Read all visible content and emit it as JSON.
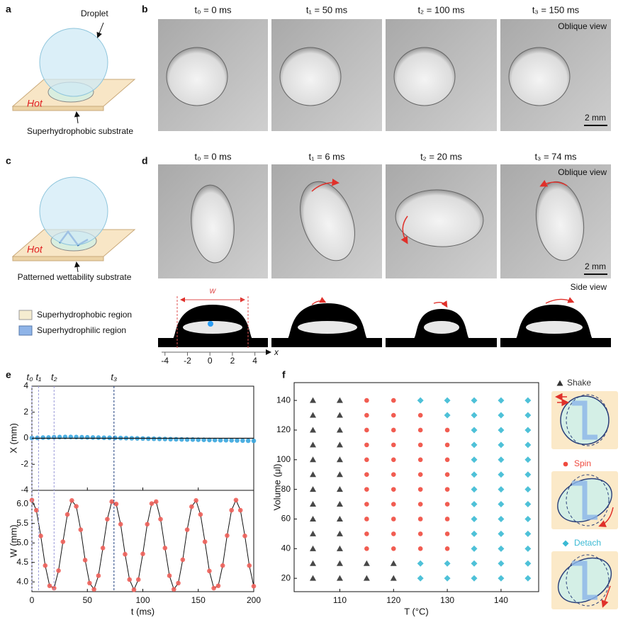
{
  "panel_labels": [
    "a",
    "b",
    "c",
    "d",
    "e",
    "f"
  ],
  "panel_a": {
    "callout": "Droplet",
    "hot": "Hot",
    "substrate": "Superhydrophobic substrate"
  },
  "panel_b": {
    "times": [
      "t₀ = 0 ms",
      "t₁ = 50 ms",
      "t₂ = 100 ms",
      "t₃ = 150 ms"
    ],
    "view": "Oblique view",
    "scale_bar": "2 mm"
  },
  "panel_c": {
    "hot": "Hot",
    "substrate": "Patterned wettability substrate"
  },
  "region_legend": [
    "Superhydrophobic region",
    "Superhydrophilic region"
  ],
  "panel_d": {
    "times": [
      "t₀ = 0 ms",
      "t₁ = 6 ms",
      "t₂ = 20 ms",
      "t₃ = 74 ms"
    ],
    "oblique_view": "Oblique view",
    "scale_bar": "2 mm",
    "side_view": "Side view",
    "width_label": "w",
    "side_axis": {
      "label": "x",
      "xlim": [
        -4.3,
        5.6
      ],
      "xticks": [
        -4,
        -2,
        0,
        2,
        4
      ]
    }
  },
  "chart_data": [
    {
      "type": "scatter",
      "ylabel": "X (mm)",
      "xlim": [
        0,
        200
      ],
      "xticks": [
        0,
        50,
        100,
        150,
        200
      ],
      "ylim": [
        -4,
        4
      ],
      "yticks": [
        -4,
        -2,
        0,
        2,
        4
      ],
      "x": [
        0,
        5,
        10,
        15,
        20,
        25,
        30,
        35,
        40,
        45,
        50,
        55,
        60,
        65,
        70,
        75,
        80,
        85,
        90,
        95,
        100,
        105,
        110,
        115,
        120,
        125,
        130,
        135,
        140,
        145,
        150,
        155,
        160,
        165,
        170,
        175,
        180,
        185,
        190,
        195,
        200
      ],
      "series": [
        {
          "color": "#3aa7df",
          "marker": "circle",
          "values": [
            0.02,
            0.03,
            0.05,
            0.06,
            0.08,
            0.09,
            0.1,
            0.1,
            0.09,
            0.08,
            0.07,
            0.06,
            0.05,
            0.04,
            0.04,
            0.03,
            0.02,
            0.01,
            0,
            -0.01,
            -0.02,
            -0.03,
            -0.04,
            -0.05,
            -0.06,
            -0.07,
            -0.08,
            -0.09,
            -0.1,
            -0.1,
            -0.11,
            -0.12,
            -0.13,
            -0.14,
            -0.15,
            -0.15,
            -0.16,
            -0.17,
            -0.18,
            -0.19,
            -0.2
          ]
        }
      ],
      "events": [
        {
          "label": "t₀",
          "value": 0,
          "color": "#9a9ad8"
        },
        {
          "label": "t₁",
          "value": 6,
          "color": "#9a9ad8"
        },
        {
          "label": "t₂",
          "value": 20,
          "color": "#9a9ad8"
        },
        {
          "label": "t₃",
          "value": 74,
          "color": "#1f3f7f"
        }
      ]
    },
    {
      "type": "scatter",
      "xlabel": "t (ms)",
      "ylabel": "W (mm)",
      "xlim": [
        0,
        200
      ],
      "xticks": [
        0,
        50,
        100,
        150,
        200
      ],
      "ylim": [
        3.75,
        6.35
      ],
      "yticks": [
        {
          "value": 4,
          "label": "4.0"
        },
        4.5,
        {
          "value": 5,
          "label": "5.0"
        },
        5.5,
        {
          "value": 6,
          "label": "6.0"
        }
      ],
      "x": [
        0,
        4,
        8,
        12,
        16,
        20,
        24,
        28,
        32,
        36,
        40,
        44,
        48,
        52,
        56,
        60,
        64,
        68,
        72,
        76,
        80,
        84,
        88,
        92,
        96,
        100,
        104,
        108,
        112,
        116,
        120,
        124,
        128,
        132,
        136,
        140,
        144,
        148,
        152,
        156,
        160,
        164,
        168,
        172,
        176,
        180,
        184,
        188,
        192,
        196,
        200
      ],
      "series": [
        {
          "color": "#111111",
          "style": "line",
          "values": [
            6.1,
            5.84,
            5.18,
            4.42,
            3.9,
            3.84,
            4.29,
            5.03,
            5.73,
            6.09,
            5.94,
            5.34,
            4.56,
            3.97,
            3.81,
            4.16,
            4.87,
            5.61,
            6.06,
            6.0,
            5.48,
            4.71,
            4.06,
            3.8,
            4.06,
            4.72,
            5.48,
            6.01,
            6.06,
            5.61,
            4.87,
            4.16,
            3.81,
            3.97,
            4.57,
            5.34,
            5.93,
            6.09,
            5.73,
            5.03,
            4.28,
            3.84,
            3.9,
            4.42,
            5.19,
            5.84,
            6.1,
            5.84,
            5.18,
            4.42,
            3.89
          ]
        },
        {
          "color": "#f0605a",
          "marker": "circle",
          "values": [
            6.1,
            5.84,
            5.18,
            4.42,
            3.9,
            3.84,
            4.29,
            5.03,
            5.73,
            6.09,
            5.94,
            5.34,
            4.56,
            3.97,
            3.81,
            4.16,
            4.87,
            5.61,
            6.06,
            6.0,
            5.48,
            4.71,
            4.06,
            3.8,
            4.06,
            4.72,
            5.48,
            6.01,
            6.06,
            5.61,
            4.87,
            4.16,
            3.81,
            3.97,
            4.57,
            5.34,
            5.93,
            6.09,
            5.73,
            5.03,
            4.28,
            3.84,
            3.9,
            4.42,
            5.19,
            5.84,
            6.1,
            5.84,
            5.18,
            4.42,
            3.89
          ]
        }
      ]
    },
    {
      "type": "scatter",
      "xlabel": "T (°C)",
      "ylabel": "Volume (μl)",
      "xlim": [
        101.5,
        147
      ],
      "xticks": [
        110,
        120,
        130,
        140
      ],
      "ylim": [
        11,
        152
      ],
      "yticks": [
        20,
        40,
        60,
        80,
        100,
        120,
        140
      ],
      "series": [
        {
          "name": "Shake",
          "color": "#333333",
          "marker": "triangle",
          "x": [
            105,
            105,
            105,
            105,
            105,
            105,
            105,
            105,
            105,
            105,
            105,
            105,
            105,
            110,
            110,
            110,
            110,
            110,
            110,
            110,
            110,
            110,
            110,
            110,
            110,
            110,
            115,
            115,
            120,
            120
          ],
          "values": [
            20,
            30,
            40,
            50,
            60,
            70,
            80,
            90,
            100,
            110,
            120,
            130,
            140,
            20,
            30,
            40,
            50,
            60,
            70,
            80,
            90,
            100,
            110,
            120,
            130,
            140,
            20,
            30,
            20,
            30
          ]
        },
        {
          "name": "Spin",
          "color": "#f04a3e",
          "marker": "circle",
          "x": [
            115,
            115,
            115,
            115,
            115,
            115,
            115,
            115,
            115,
            115,
            115,
            120,
            120,
            120,
            120,
            120,
            120,
            120,
            120,
            120,
            120,
            120,
            125,
            125,
            125,
            125,
            125,
            125,
            125,
            125,
            125,
            125,
            130,
            130,
            130,
            130,
            130,
            130,
            130,
            130,
            130
          ],
          "values": [
            40,
            50,
            60,
            70,
            80,
            90,
            100,
            110,
            120,
            130,
            140,
            40,
            50,
            60,
            70,
            80,
            90,
            100,
            110,
            120,
            130,
            140,
            40,
            50,
            60,
            70,
            80,
            90,
            100,
            110,
            120,
            130,
            40,
            50,
            60,
            70,
            80,
            90,
            100,
            110,
            120
          ]
        },
        {
          "name": "Detach",
          "color": "#3bbad4",
          "marker": "diamond",
          "x": [
            125,
            125,
            125,
            130,
            130,
            130,
            130,
            135,
            135,
            135,
            135,
            135,
            135,
            135,
            135,
            135,
            135,
            135,
            135,
            135,
            140,
            140,
            140,
            140,
            140,
            140,
            140,
            140,
            140,
            140,
            140,
            140,
            140,
            145,
            145,
            145,
            145,
            145,
            145,
            145,
            145,
            145,
            145,
            145,
            145,
            145
          ],
          "values": [
            20,
            30,
            140,
            20,
            30,
            130,
            140,
            20,
            30,
            40,
            50,
            60,
            70,
            80,
            90,
            100,
            110,
            120,
            130,
            140,
            20,
            30,
            40,
            50,
            60,
            70,
            80,
            90,
            100,
            110,
            120,
            130,
            140,
            20,
            30,
            40,
            50,
            60,
            70,
            80,
            90,
            100,
            110,
            120,
            130,
            140
          ]
        }
      ]
    }
  ]
}
